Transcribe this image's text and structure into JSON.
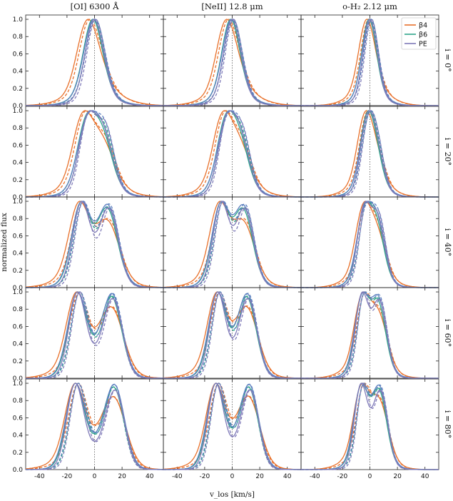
{
  "chart_data": {
    "type": "line",
    "columns": [
      {
        "id": "oi",
        "title": "[OI] 6300 Å",
        "mode": "oi"
      },
      {
        "id": "neii",
        "title": "[NeII] 12.8 μm",
        "mode": "neii"
      },
      {
        "id": "h2",
        "title": "o-H₂ 2.12 μm",
        "mode": "h2"
      }
    ],
    "rows": [
      {
        "label": "i = 0°",
        "inc": 0
      },
      {
        "label": "i = 20°",
        "inc": 20
      },
      {
        "label": "i = 40°",
        "inc": 40
      },
      {
        "label": "i = 60°",
        "inc": 60
      },
      {
        "label": "i = 80°",
        "inc": 80
      }
    ],
    "xlabel": "v_los [km/s]",
    "ylabel": "normalized flux",
    "xlim": [
      -50,
      50
    ],
    "ylim": [
      0,
      1.05
    ],
    "xticks": [
      -40,
      -20,
      0,
      20,
      40
    ],
    "yticks": [
      "0.0",
      "0.2",
      "0.4",
      "0.6",
      "0.8",
      "1.0"
    ],
    "legend": {
      "placement": "top-right",
      "panel": "top-right",
      "entries": [
        {
          "name": "β4",
          "color": "#e8702a"
        },
        {
          "name": "β6",
          "color": "#2fa58a"
        },
        {
          "name": "PE",
          "color": "#7f7ab8"
        }
      ]
    },
    "series_style": {
      "solid": "model",
      "dashed": "alternative"
    },
    "colors": {
      "b4": "#e8702a",
      "b6": "#2fa58a",
      "pe": "#7f7ab8",
      "blue": "#5b7fbf",
      "zero_line": "#555555"
    }
  }
}
